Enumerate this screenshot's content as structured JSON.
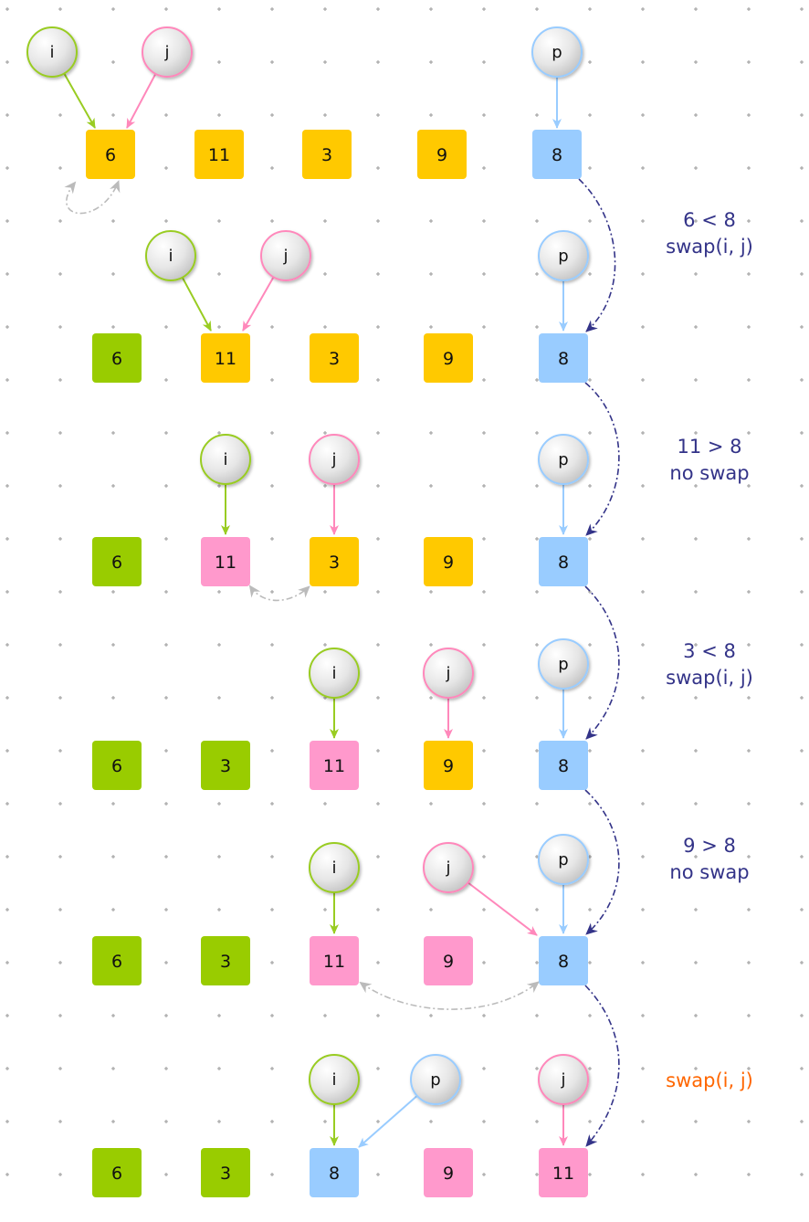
{
  "colors": {
    "unsorted": "#FFC900",
    "less": "#99CC00",
    "greater": "#FF99CC",
    "pivot": "#99CCFF",
    "i_ring": "#99CC22",
    "j_ring": "#FF88BB",
    "p_ring": "#99CCFF",
    "note": "#333388",
    "highlight_note": "#FF6600",
    "pivot_path": "#333388",
    "swap_arc": "#BBBBBB"
  },
  "pointers": {
    "i": "i",
    "j": "j",
    "p": "p"
  },
  "steps": [
    {
      "boxes": [
        {
          "value": "6",
          "state": "unsorted"
        },
        {
          "value": "11",
          "state": "unsorted"
        },
        {
          "value": "3",
          "state": "unsorted"
        },
        {
          "value": "9",
          "state": "unsorted"
        },
        {
          "value": "8",
          "state": "pivot"
        }
      ]
    },
    {
      "boxes": [
        {
          "value": "6",
          "state": "less"
        },
        {
          "value": "11",
          "state": "unsorted"
        },
        {
          "value": "3",
          "state": "unsorted"
        },
        {
          "value": "9",
          "state": "unsorted"
        },
        {
          "value": "8",
          "state": "pivot"
        }
      ]
    },
    {
      "boxes": [
        {
          "value": "6",
          "state": "less"
        },
        {
          "value": "11",
          "state": "greater"
        },
        {
          "value": "3",
          "state": "unsorted"
        },
        {
          "value": "9",
          "state": "unsorted"
        },
        {
          "value": "8",
          "state": "pivot"
        }
      ]
    },
    {
      "boxes": [
        {
          "value": "6",
          "state": "less"
        },
        {
          "value": "3",
          "state": "less"
        },
        {
          "value": "11",
          "state": "greater"
        },
        {
          "value": "9",
          "state": "unsorted"
        },
        {
          "value": "8",
          "state": "pivot"
        }
      ]
    },
    {
      "boxes": [
        {
          "value": "6",
          "state": "less"
        },
        {
          "value": "3",
          "state": "less"
        },
        {
          "value": "11",
          "state": "greater"
        },
        {
          "value": "9",
          "state": "greater"
        },
        {
          "value": "8",
          "state": "pivot"
        }
      ]
    },
    {
      "boxes": [
        {
          "value": "6",
          "state": "less"
        },
        {
          "value": "3",
          "state": "less"
        },
        {
          "value": "8",
          "state": "pivot"
        },
        {
          "value": "9",
          "state": "greater"
        },
        {
          "value": "11",
          "state": "greater"
        }
      ]
    }
  ],
  "notes": [
    {
      "lines": [
        "6 < 8",
        "swap(i, j)"
      ],
      "highlight": false
    },
    {
      "lines": [
        "11 > 8",
        "no swap"
      ],
      "highlight": false
    },
    {
      "lines": [
        "3 < 8",
        "swap(i, j)"
      ],
      "highlight": false
    },
    {
      "lines": [
        "9 > 8",
        "no swap"
      ],
      "highlight": false
    },
    {
      "lines": [
        "swap(i, j)"
      ],
      "highlight": true
    }
  ]
}
